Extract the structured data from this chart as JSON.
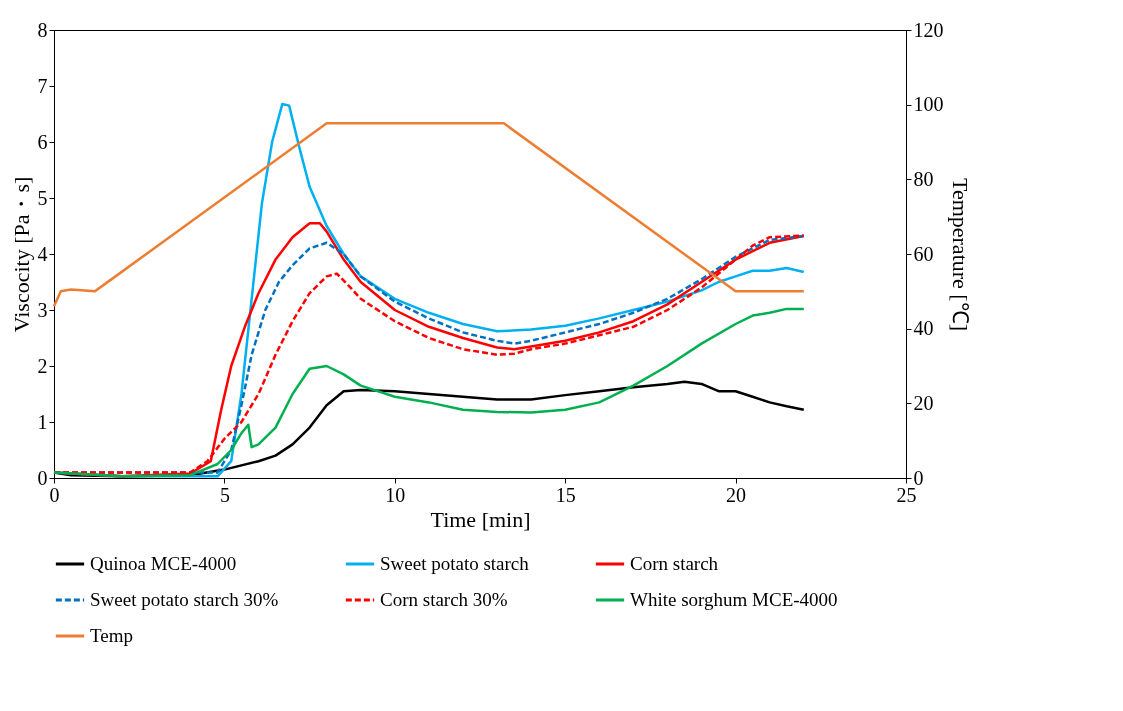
{
  "chart_data": {
    "type": "line",
    "xlabel": "Time [min]",
    "ylabel": "Viscocity [Pa・s]",
    "y2label": "Temperature [℃]",
    "xlim": [
      0,
      25
    ],
    "xticks": [
      0,
      5,
      10,
      15,
      20,
      25
    ],
    "ylim": [
      0,
      8
    ],
    "yticks": [
      0,
      1,
      2,
      3,
      4,
      5,
      6,
      7,
      8
    ],
    "y2lim": [
      0,
      120
    ],
    "y2ticks": [
      0,
      20,
      40,
      60,
      80,
      100,
      120
    ],
    "grid": false,
    "legend": "bottom",
    "marker": "none",
    "series": [
      {
        "name": "Quinoa MCE-4000",
        "color": "#000000",
        "line_style": "solid",
        "x": [
          0,
          0.5,
          2,
          4,
          5,
          6,
          6.5,
          7,
          7.5,
          8,
          8.5,
          9,
          10,
          11,
          12,
          13,
          14,
          15,
          16,
          17,
          18,
          18.5,
          19,
          19.5,
          20,
          20.5,
          21,
          21.5,
          22
        ],
        "values": [
          0.1,
          0.05,
          0.03,
          0.05,
          0.15,
          0.3,
          0.4,
          0.6,
          0.9,
          1.3,
          1.55,
          1.57,
          1.55,
          1.5,
          1.45,
          1.4,
          1.4,
          1.48,
          1.55,
          1.62,
          1.68,
          1.72,
          1.68,
          1.55,
          1.55,
          1.45,
          1.35,
          1.28,
          1.22
        ]
      },
      {
        "name": "Sweet potato starch",
        "color": "#00b0f0",
        "line_style": "solid",
        "x": [
          0,
          2,
          4.8,
          5.2,
          5.5,
          5.8,
          6.1,
          6.4,
          6.7,
          6.9,
          7.2,
          7.5,
          8,
          8.5,
          9,
          10,
          11,
          12,
          13,
          14,
          15,
          16,
          17,
          18,
          19,
          19.5,
          20,
          20.5,
          21,
          21.5,
          22
        ],
        "values": [
          0.1,
          0.03,
          0.03,
          0.3,
          1.5,
          3.2,
          4.9,
          6.0,
          6.68,
          6.65,
          5.9,
          5.2,
          4.5,
          4.0,
          3.6,
          3.2,
          2.95,
          2.75,
          2.62,
          2.65,
          2.72,
          2.85,
          3.0,
          3.15,
          3.35,
          3.5,
          3.6,
          3.7,
          3.7,
          3.75,
          3.68
        ]
      },
      {
        "name": "Corn starch",
        "color": "#ff0000",
        "line_style": "solid",
        "x": [
          0,
          2,
          4,
          4.6,
          4.9,
          5.2,
          5.6,
          6,
          6.5,
          7,
          7.5,
          7.8,
          8,
          8.5,
          9,
          10,
          11,
          12,
          13,
          13.5,
          14,
          15,
          16,
          17,
          18,
          19,
          20,
          21,
          22
        ],
        "values": [
          0.1,
          0.03,
          0.08,
          0.3,
          1.2,
          2.0,
          2.7,
          3.3,
          3.9,
          4.3,
          4.55,
          4.55,
          4.4,
          3.9,
          3.5,
          3.0,
          2.7,
          2.5,
          2.33,
          2.3,
          2.35,
          2.45,
          2.6,
          2.8,
          3.1,
          3.5,
          3.9,
          4.2,
          4.32
        ]
      },
      {
        "name": "Sweet potato starch 30%",
        "color": "#0070c0",
        "line_style": "dashed",
        "x": [
          0,
          4.8,
          5.2,
          5.5,
          5.8,
          6.2,
          6.6,
          7,
          7.5,
          8,
          8.5,
          9,
          10,
          11,
          12,
          13,
          13.5,
          14,
          15,
          16,
          17,
          18,
          19,
          20,
          21,
          22
        ],
        "values": [
          0.1,
          0.1,
          0.5,
          1.3,
          2.2,
          3.0,
          3.5,
          3.8,
          4.1,
          4.2,
          4.0,
          3.6,
          3.15,
          2.85,
          2.6,
          2.45,
          2.4,
          2.45,
          2.6,
          2.75,
          2.95,
          3.2,
          3.55,
          3.95,
          4.25,
          4.32
        ]
      },
      {
        "name": "Corn starch 30%",
        "color": "#ff0000",
        "line_style": "dashed",
        "x": [
          0,
          4,
          4.5,
          5,
          5.5,
          6,
          6.5,
          7,
          7.5,
          8,
          8.3,
          8.7,
          9,
          10,
          11,
          12,
          13,
          13.5,
          14,
          15,
          16,
          17,
          18,
          19,
          20,
          20.5,
          21,
          22
        ],
        "values": [
          0.1,
          0.1,
          0.3,
          0.7,
          1.0,
          1.5,
          2.2,
          2.8,
          3.3,
          3.6,
          3.65,
          3.4,
          3.2,
          2.8,
          2.5,
          2.3,
          2.2,
          2.22,
          2.3,
          2.4,
          2.55,
          2.7,
          3.0,
          3.4,
          3.9,
          4.15,
          4.3,
          4.33
        ]
      },
      {
        "name": "White sorghum MCE-4000",
        "color": "#00b050",
        "line_style": "solid",
        "x": [
          0,
          2,
          4,
          4.8,
          5.2,
          5.5,
          5.7,
          5.8,
          6,
          6.5,
          7,
          7.5,
          8,
          8.5,
          9,
          10,
          11,
          12,
          13,
          14,
          15,
          16,
          17,
          18,
          19,
          20,
          20.5,
          21,
          21.5,
          22
        ],
        "values": [
          0.1,
          0.03,
          0.05,
          0.25,
          0.5,
          0.8,
          0.95,
          0.55,
          0.6,
          0.9,
          1.5,
          1.95,
          2.0,
          1.85,
          1.65,
          1.45,
          1.35,
          1.22,
          1.18,
          1.17,
          1.22,
          1.35,
          1.65,
          2.0,
          2.4,
          2.75,
          2.9,
          2.95,
          3.02,
          3.02
        ]
      },
      {
        "name": "Temp",
        "color": "#ed7d31",
        "line_style": "solid",
        "axis": "y2",
        "x": [
          0,
          0.2,
          0.5,
          1.2,
          1.5,
          8,
          13.2,
          20,
          22
        ],
        "values": [
          46,
          50,
          50.5,
          50,
          52,
          95,
          95,
          50,
          50
        ]
      }
    ]
  }
}
